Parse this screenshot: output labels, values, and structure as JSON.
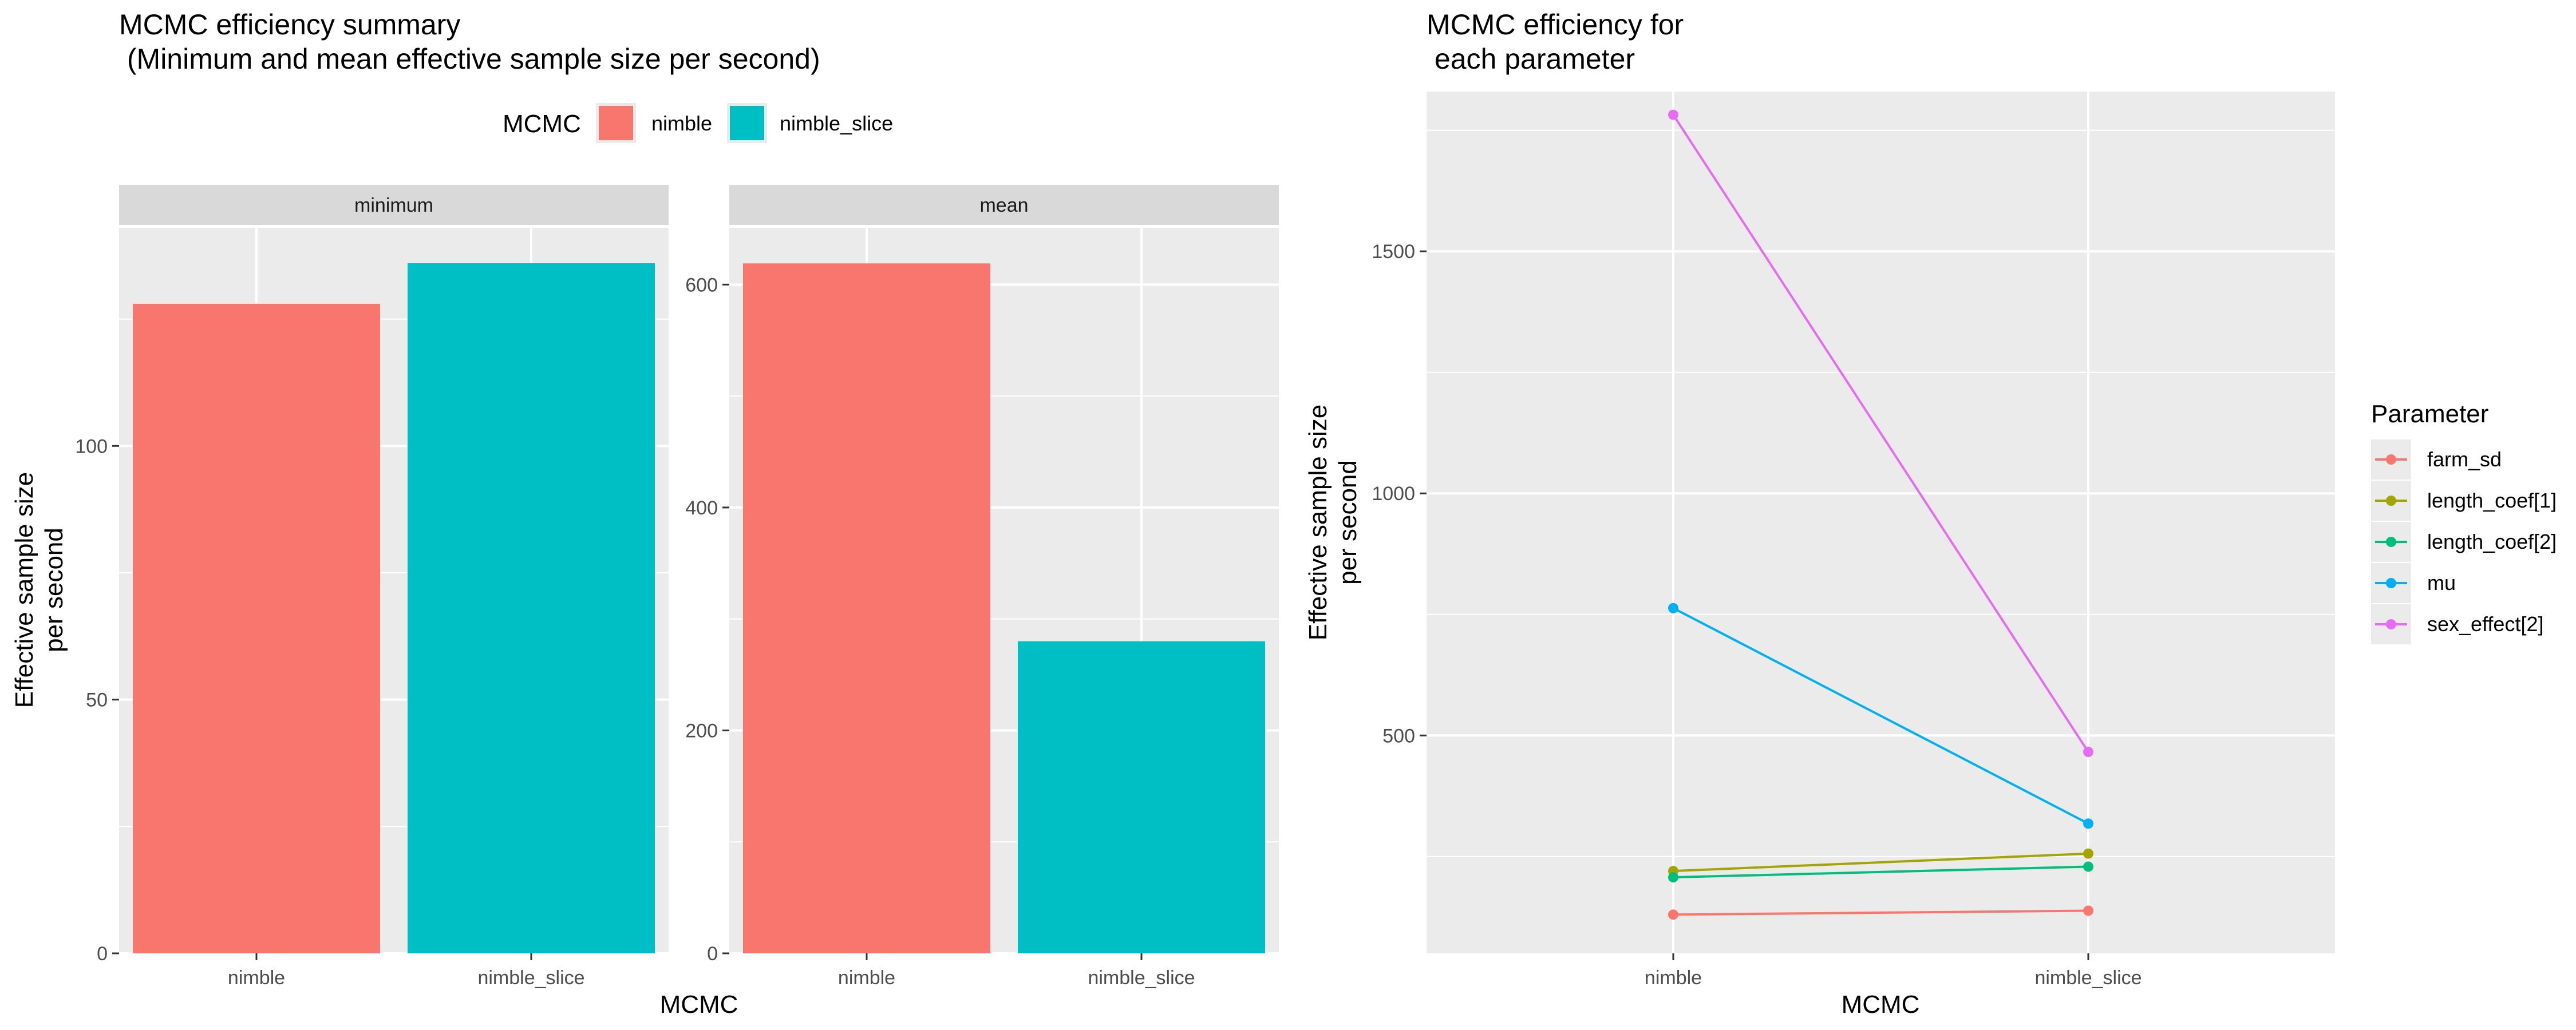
{
  "chart_data": [
    {
      "type": "bar",
      "title": "MCMC efficiency summary",
      "subtitle": " (Minimum and mean effective sample size per second)",
      "xlabel": "MCMC",
      "ylabel_lines": [
        "Effective sample size",
        "per second"
      ],
      "legend": {
        "title": "MCMC",
        "placement": "top",
        "entries": [
          {
            "name": "nimble",
            "color": "#F8766D"
          },
          {
            "name": "nimble_slice",
            "color": "#00BFC4"
          }
        ]
      },
      "facets": [
        {
          "label": "minimum",
          "categories": [
            "nimble",
            "nimble_slice"
          ],
          "values": [
            128,
            136
          ],
          "ylim": [
            0,
            143
          ],
          "yticks": [
            0,
            50,
            100
          ],
          "grid": true
        },
        {
          "label": "mean",
          "categories": [
            "nimble",
            "nimble_slice"
          ],
          "values": [
            619,
            280
          ],
          "ylim": [
            0,
            651
          ],
          "yticks": [
            0,
            200,
            400,
            600
          ],
          "grid": true
        }
      ]
    },
    {
      "type": "line",
      "title": "MCMC efficiency for",
      "subtitle": " each parameter",
      "xlabel": "MCMC",
      "ylabel_lines": [
        "Effective sample size",
        "per second"
      ],
      "categories": [
        "nimble",
        "nimble_slice"
      ],
      "ylim": [
        50,
        1830
      ],
      "yticks": [
        500,
        1000,
        1500
      ],
      "grid": true,
      "legend": {
        "title": "Parameter",
        "placement": "right"
      },
      "series": [
        {
          "name": "farm_sd",
          "color": "#F8766D",
          "values": [
            130,
            138
          ]
        },
        {
          "name": "length_coef[1]",
          "color": "#A3A500",
          "values": [
            220,
            256
          ]
        },
        {
          "name": "length_coef[2]",
          "color": "#00BF7D",
          "values": [
            207,
            229
          ]
        },
        {
          "name": "mu",
          "color": "#00B0F6",
          "values": [
            763,
            318
          ]
        },
        {
          "name": "sex_effect[2]",
          "color": "#E76BF3",
          "values": [
            1782,
            466
          ]
        }
      ]
    }
  ]
}
